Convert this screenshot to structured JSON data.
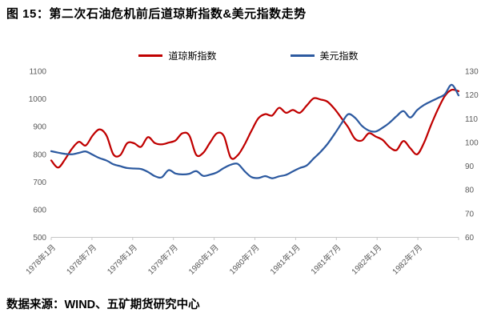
{
  "title": "图 15：第二次石油危机前后道琼斯指数&美元指数走势",
  "source": "数据来源：WIND、五矿期货研究中心",
  "legend": {
    "items": [
      {
        "label": "道琼斯指数",
        "color": "#C00000"
      },
      {
        "label": "美元指数",
        "color": "#2D5AA0"
      }
    ]
  },
  "colors": {
    "axis_line": "#C6C6C6",
    "tick_label": "#595959",
    "background": "#FFFFFF",
    "dow_line": "#C00000",
    "usd_line": "#2D5AA0"
  },
  "chart_data": {
    "type": "line",
    "title": "",
    "grid": false,
    "legend_position": "top",
    "x_axis": {
      "start": "1978年1月",
      "end": "1982年12月",
      "interval": "monthly",
      "tick_labels": [
        "1978年1月",
        "1978年7月",
        "1979年1月",
        "1979年7月",
        "1980年1月",
        "1980年7月",
        "1981年1月",
        "1981年7月",
        "1982年1月",
        "1982年7月"
      ]
    },
    "left_axis": {
      "min": 500,
      "max": 1100,
      "step": 100,
      "ticks": [
        1100,
        1000,
        900,
        800,
        700,
        600,
        500
      ]
    },
    "right_axis": {
      "min": 60,
      "max": 130,
      "step": 10,
      "ticks": [
        130,
        120,
        110,
        100,
        90,
        80,
        70,
        60
      ]
    },
    "series": [
      {
        "name": "道琼斯指数",
        "axis": "left",
        "color": "#C00000",
        "values": [
          778,
          752,
          782,
          820,
          845,
          832,
          868,
          890,
          868,
          800,
          797,
          840,
          840,
          827,
          862,
          841,
          836,
          842,
          850,
          876,
          868,
          798,
          805,
          842,
          876,
          866,
          788,
          796,
          835,
          885,
          930,
          945,
          940,
          968,
          950,
          960,
          950,
          976,
          1002,
          998,
          990,
          965,
          932,
          898,
          856,
          850,
          876,
          864,
          852,
          826,
          815,
          848,
          822,
          800,
          842,
          905,
          962,
          1010,
          1033,
          1028
        ]
      },
      {
        "name": "美元指数",
        "axis": "right",
        "color": "#2D5AA0",
        "values": [
          96.3,
          95.7,
          95.2,
          95.0,
          95.6,
          96.2,
          94.8,
          93.4,
          92.4,
          90.8,
          90.0,
          89.2,
          89.0,
          88.8,
          87.6,
          85.8,
          85.3,
          88.3,
          86.9,
          86.5,
          86.8,
          87.9,
          85.9,
          86.4,
          87.4,
          89.2,
          90.6,
          91.0,
          87.9,
          85.4,
          85.0,
          85.8,
          84.9,
          85.7,
          86.3,
          87.8,
          89.2,
          90.3,
          93.2,
          96.0,
          99.3,
          103.4,
          107.8,
          111.9,
          110.4,
          107.0,
          105.0,
          104.6,
          106.2,
          108.3,
          111.0,
          113.2,
          110.5,
          113.6,
          115.8,
          117.3,
          118.7,
          120.3,
          124.3,
          119.8
        ]
      }
    ]
  }
}
